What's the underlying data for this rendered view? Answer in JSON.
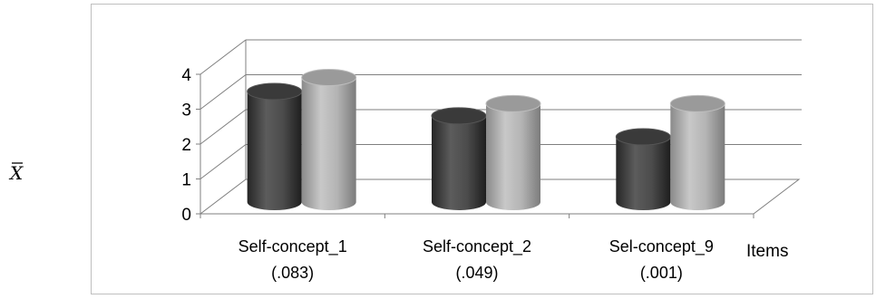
{
  "chart_data": {
    "type": "bar",
    "title": "",
    "ylabel": "X̄",
    "xlabel": "Items",
    "ylim": [
      0,
      4
    ],
    "yticks": [
      "0",
      "1",
      "2",
      "3",
      "4"
    ],
    "grid": true,
    "style": "3d-cylinder",
    "categories": [
      {
        "name": "Self-concept_1",
        "sub": "(.083)"
      },
      {
        "name": "Self-concept_2",
        "sub": "(.049)"
      },
      {
        "name": "Sel-concept_9",
        "sub": "(.001)"
      }
    ],
    "series": [
      {
        "color": "#4a4a4a",
        "values": [
          3.3,
          2.6,
          2.0
        ]
      },
      {
        "color": "#a8a8a8",
        "values": [
          3.7,
          2.95,
          2.95
        ]
      }
    ]
  }
}
